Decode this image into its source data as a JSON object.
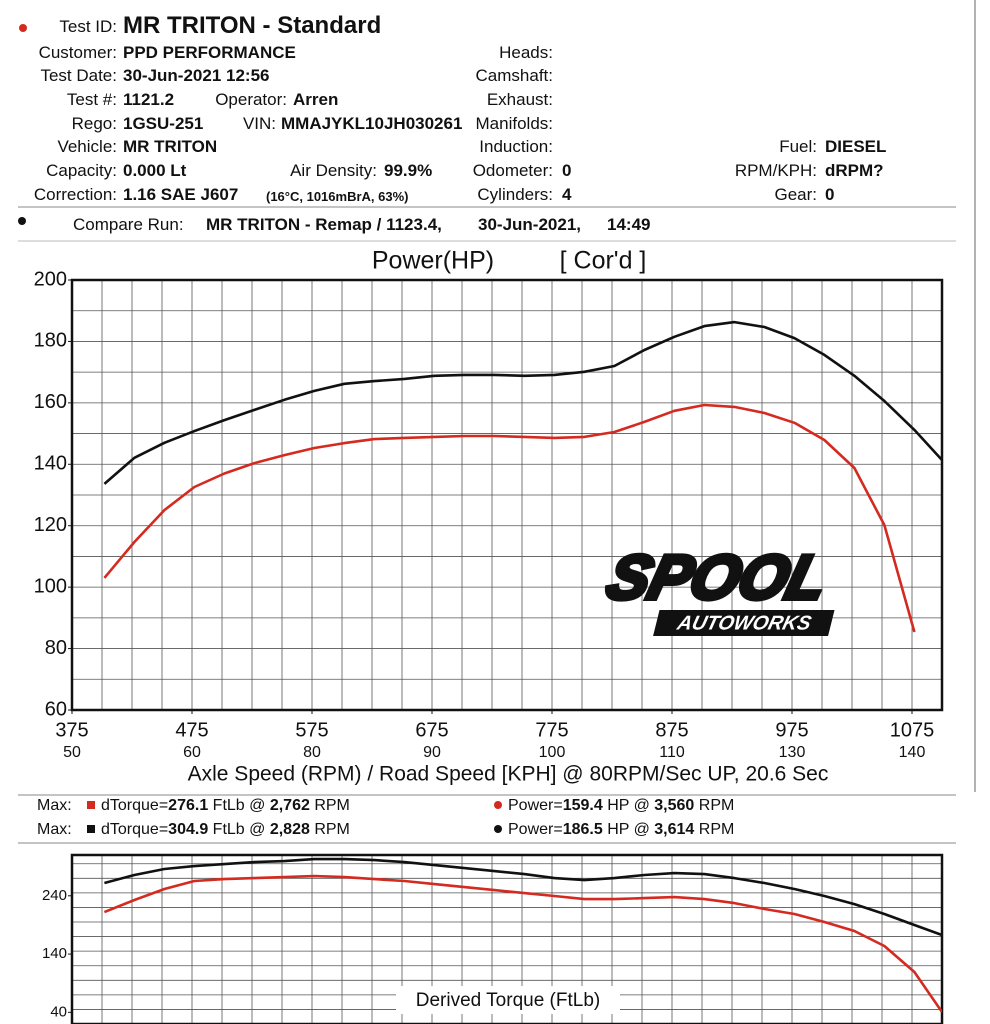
{
  "header": {
    "test_id": {
      "label": "Test ID:",
      "value": "MR TRITON - Standard"
    },
    "customer": {
      "label": "Customer:",
      "value": "PPD PERFORMANCE"
    },
    "test_date": {
      "label": "Test Date:",
      "value": "30-Jun-2021 12:56"
    },
    "test_no": {
      "label": "Test #:",
      "value": "1121.2"
    },
    "operator": {
      "label": "Operator:",
      "value": "Arren"
    },
    "rego": {
      "label": "Rego:",
      "value": "1GSU-251"
    },
    "vin": {
      "label": "VIN:",
      "value": "MMAJYKL10JH030261"
    },
    "vehicle": {
      "label": "Vehicle:",
      "value": "MR TRITON"
    },
    "capacity": {
      "label": "Capacity:",
      "value": "0.000 Lt"
    },
    "air_density": {
      "label": "Air Density:",
      "value": "99.9%"
    },
    "correction": {
      "label": "Correction:",
      "value": "1.16 SAE J607",
      "note": "(16°C, 1016mBrA, 63%)"
    },
    "heads": {
      "label": "Heads:"
    },
    "camshaft": {
      "label": "Camshaft:"
    },
    "exhaust": {
      "label": "Exhaust:"
    },
    "manifolds": {
      "label": "Manifolds:"
    },
    "induction": {
      "label": "Induction:"
    },
    "odometer": {
      "label": "Odometer:",
      "value": "0"
    },
    "cylinders": {
      "label": "Cylinders:",
      "value": "4"
    },
    "fuel": {
      "label": "Fuel:",
      "value": "DIESEL"
    },
    "rpm_kph": {
      "label": "RPM/KPH:",
      "value": "dRPM?"
    },
    "gear": {
      "label": "Gear:",
      "value": "0"
    },
    "compare_run": {
      "label": "Compare Run:",
      "name": "MR TRITON - Remap / 1123.4,",
      "date": "30-Jun-2021,",
      "time": "14:49"
    }
  },
  "max_rows": [
    {
      "label": "Max:",
      "torque_label": "dTorque=",
      "torque": "276.1",
      "torque_unit": "FtLb @",
      "torque_rpm": "2,762",
      "torque_rpm_unit": "RPM",
      "power_label": "Power=",
      "power": "159.4",
      "power_unit": "HP @",
      "power_rpm": "3,560",
      "power_rpm_unit": "RPM",
      "color": "#d42a20"
    },
    {
      "label": "Max:",
      "torque_label": "dTorque=",
      "torque": "304.9",
      "torque_unit": "FtLb @",
      "torque_rpm": "2,828",
      "torque_rpm_unit": "RPM",
      "power_label": "Power=",
      "power": "186.5",
      "power_unit": "HP @",
      "power_rpm": "3,614",
      "power_rpm_unit": "RPM",
      "color": "#111111"
    }
  ],
  "logo": {
    "name": "SPOOL",
    "sub": "AUTOWORKS"
  },
  "chart_data": [
    {
      "type": "line",
      "title": "Power(HP)",
      "subtitle": "[ Cor'd ]",
      "x_label": "Axle Speed (RPM) / Road Speed [KPH] @ 80RPM/Sec UP, 20.6 Sec",
      "x": [
        402,
        427,
        452,
        477,
        502,
        527,
        552,
        577,
        602,
        627,
        652,
        677,
        702,
        727,
        752,
        777,
        802,
        827,
        852,
        877,
        902,
        927,
        952,
        977,
        1002,
        1027,
        1052,
        1077,
        1100
      ],
      "xlim": [
        375,
        1100
      ],
      "xticks": [
        375,
        475,
        575,
        675,
        775,
        875,
        975,
        1075
      ],
      "x2ticks": [
        50,
        60,
        80,
        90,
        100,
        110,
        130,
        140
      ],
      "ylim": [
        60,
        200
      ],
      "yticks": [
        60,
        80,
        100,
        120,
        140,
        160,
        180,
        200
      ],
      "grid": {
        "x_step": 25,
        "y_step": 10
      },
      "series": [
        {
          "color": "#d42a20",
          "values": [
            103,
            114.7,
            125.1,
            132.6,
            137,
            140.4,
            143,
            145.3,
            146.9,
            148.2,
            148.6,
            148.9,
            149.2,
            149.2,
            148.9,
            148.6,
            148.9,
            150.5,
            153.8,
            157.4,
            159.3,
            158.7,
            156.7,
            153.5,
            147.9,
            138.8,
            120.2,
            85.4,
            null
          ]
        },
        {
          "color": "#111111",
          "values": [
            133.6,
            142.1,
            147,
            150.8,
            154.4,
            157.7,
            161,
            163.9,
            166.2,
            167.1,
            167.8,
            168.8,
            169.1,
            169.1,
            168.8,
            169.1,
            170.1,
            172,
            177.2,
            181.5,
            185,
            186.3,
            184.7,
            181.1,
            175.6,
            168.8,
            160.6,
            151.2,
            141.4
          ]
        }
      ]
    },
    {
      "type": "line",
      "title": "Derived Torque (FtLb)",
      "x": [
        402,
        427,
        452,
        477,
        502,
        527,
        552,
        577,
        602,
        627,
        652,
        677,
        702,
        727,
        752,
        777,
        802,
        827,
        852,
        877,
        902,
        927,
        952,
        977,
        1002,
        1027,
        1052,
        1077,
        1100
      ],
      "xlim": [
        375,
        1100
      ],
      "ylim": [
        20,
        310
      ],
      "yticks": [
        40,
        140,
        240
      ],
      "grid": {
        "x_step": 25,
        "y_step": 25
      },
      "series": [
        {
          "color": "#d42a20",
          "values": [
            212.1,
            232.7,
            251.6,
            265.3,
            268.7,
            270.4,
            272.1,
            273.9,
            272.1,
            268.7,
            265.3,
            260.1,
            255,
            249.8,
            244.7,
            239.6,
            234.4,
            234.4,
            236.1,
            237.8,
            234.4,
            227.5,
            217.3,
            208.7,
            195,
            179.5,
            153.8,
            109.2,
            40.6
          ]
        },
        {
          "color": "#111111",
          "values": [
            261.9,
            275.6,
            285.9,
            291,
            294.4,
            297.9,
            299.6,
            303,
            303,
            301.3,
            297.9,
            292.7,
            287.6,
            282.4,
            277.3,
            270.4,
            267,
            270.4,
            275.6,
            279,
            277.3,
            270.4,
            261.9,
            251.6,
            239.6,
            225.8,
            208.7,
            189.8,
            172.7
          ]
        }
      ]
    }
  ]
}
